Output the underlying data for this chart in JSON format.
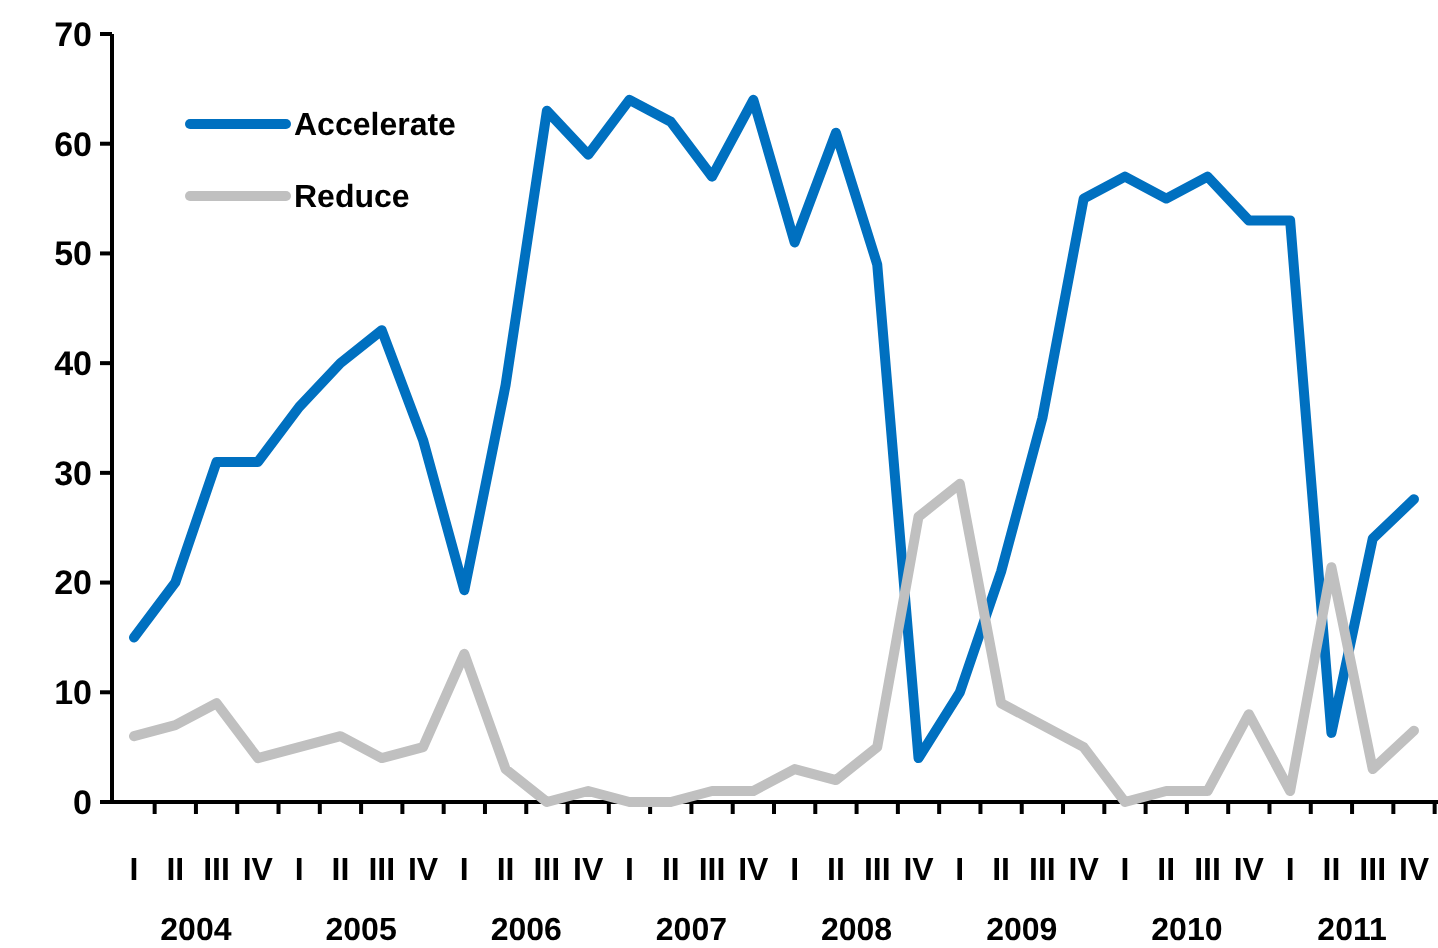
{
  "chart_data": {
    "type": "line",
    "categories": [
      "I",
      "II",
      "III",
      "IV",
      "I",
      "II",
      "III",
      "IV",
      "I",
      "II",
      "III",
      "IV",
      "I",
      "II",
      "III",
      "IV",
      "I",
      "II",
      "III",
      "IV",
      "I",
      "II",
      "III",
      "IV",
      "I",
      "II",
      "III",
      "IV",
      "I",
      "II",
      "III",
      "IV"
    ],
    "annotations": [
      "2004",
      "2005",
      "2006",
      "2007",
      "2008",
      "2009",
      "2010",
      "2011"
    ],
    "series": [
      {
        "name": "Accelerate",
        "color": "#0070c0",
        "values": [
          15,
          20,
          31,
          31,
          36,
          40,
          43,
          33,
          19.3,
          38,
          63,
          59,
          64,
          62,
          57,
          64,
          51,
          61,
          49,
          4,
          10,
          21,
          35,
          55,
          57,
          55,
          57,
          53,
          53,
          6.3,
          24,
          27.6
        ]
      },
      {
        "name": "Reduce",
        "color": "#c0c0c0",
        "values": [
          6,
          7,
          9,
          4,
          5,
          6,
          4,
          5,
          13.5,
          3,
          0,
          1,
          0,
          0,
          1,
          1,
          3,
          2,
          5,
          26,
          29,
          9,
          7,
          5,
          0,
          1,
          1,
          8,
          1,
          21.4,
          3,
          6.5
        ]
      }
    ],
    "ylim": [
      0,
      70
    ],
    "yticks": [
      0,
      10,
      20,
      30,
      40,
      50,
      60,
      70
    ],
    "grid": false,
    "legend": "top left",
    "marker": "none",
    "line_style": "solid"
  }
}
